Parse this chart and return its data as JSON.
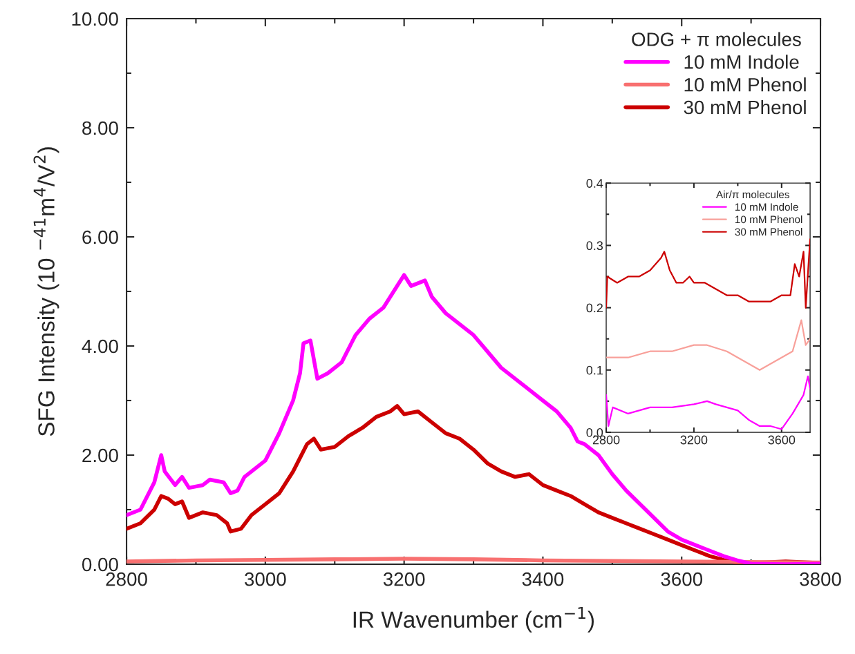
{
  "chart_data": [
    {
      "type": "line",
      "xlabel": "IR Wavenumber (cm$^{−1}$)",
      "ylabel": "SFG Intensity (10 $^{−41}$m$^{4}$/V$^{2}$)",
      "legend_title": "ODG + π molecules",
      "legend": "top right",
      "marker": "none",
      "line_style": "solid",
      "grid": false,
      "xlim": [
        2800,
        3800
      ],
      "xticks": [
        2800,
        {
          "value": 2900,
          "label": null
        },
        3000,
        {
          "value": 3100,
          "label": null
        },
        3200,
        {
          "value": 3300,
          "label": null
        },
        3400,
        {
          "value": 3500,
          "label": null
        },
        3600,
        {
          "value": 3700,
          "label": null
        },
        3800
      ],
      "ylim": [
        0,
        10
      ],
      "yticks": [
        {
          "value": 0,
          "label": "0.00"
        },
        {
          "value": 1,
          "label": null
        },
        {
          "value": 2,
          "label": "2.00"
        },
        {
          "value": 3,
          "label": null
        },
        {
          "value": 4,
          "label": "4.00"
        },
        {
          "value": 5,
          "label": null
        },
        {
          "value": 6,
          "label": "6.00"
        },
        {
          "value": 7,
          "label": null
        },
        {
          "value": 8,
          "label": "8.00"
        },
        {
          "value": 9,
          "label": null
        },
        {
          "value": 10,
          "label": "10.00"
        }
      ],
      "series": [
        {
          "name": "10 mM Indole",
          "color": "#ff00ff",
          "x": [
            2800,
            2820,
            2840,
            2850,
            2855,
            2870,
            2880,
            2890,
            2910,
            2920,
            2940,
            2950,
            2960,
            2970,
            3000,
            3020,
            3040,
            3050,
            3055,
            3065,
            3075,
            3090,
            3110,
            3130,
            3150,
            3170,
            3190,
            3200,
            3210,
            3230,
            3240,
            3260,
            3280,
            3300,
            3320,
            3340,
            3360,
            3380,
            3400,
            3420,
            3440,
            3450,
            3460,
            3480,
            3500,
            3520,
            3540,
            3560,
            3580,
            3600,
            3620,
            3640,
            3660,
            3680,
            3700,
            3750,
            3800
          ],
          "values": [
            0.9,
            1.0,
            1.5,
            2.0,
            1.7,
            1.45,
            1.6,
            1.4,
            1.45,
            1.55,
            1.5,
            1.3,
            1.35,
            1.6,
            1.9,
            2.4,
            3.0,
            3.5,
            4.05,
            4.1,
            3.4,
            3.5,
            3.7,
            4.2,
            4.5,
            4.7,
            5.1,
            5.3,
            5.1,
            5.2,
            4.9,
            4.6,
            4.4,
            4.2,
            3.9,
            3.6,
            3.4,
            3.2,
            3.0,
            2.8,
            2.5,
            2.25,
            2.2,
            2.0,
            1.65,
            1.35,
            1.1,
            0.85,
            0.6,
            0.45,
            0.35,
            0.25,
            0.15,
            0.07,
            0.01,
            0.0,
            0.01
          ]
        },
        {
          "name": "10 mM Phenol",
          "color": "#f87070",
          "x": [
            2800,
            2900,
            3000,
            3100,
            3200,
            3300,
            3400,
            3500,
            3600,
            3700,
            3800
          ],
          "values": [
            0.05,
            0.07,
            0.08,
            0.09,
            0.1,
            0.09,
            0.07,
            0.06,
            0.05,
            0.04,
            0.03
          ]
        },
        {
          "name": "30 mM Phenol",
          "color": "#cc0000",
          "x": [
            2800,
            2820,
            2840,
            2850,
            2860,
            2870,
            2880,
            2890,
            2910,
            2930,
            2945,
            2950,
            2965,
            2980,
            3000,
            3020,
            3040,
            3060,
            3070,
            3080,
            3100,
            3120,
            3140,
            3160,
            3180,
            3190,
            3200,
            3220,
            3240,
            3260,
            3280,
            3300,
            3320,
            3340,
            3360,
            3380,
            3400,
            3420,
            3440,
            3460,
            3480,
            3500,
            3520,
            3540,
            3560,
            3580,
            3600,
            3620,
            3640,
            3660,
            3680,
            3700,
            3750,
            3800
          ],
          "values": [
            0.65,
            0.75,
            1.0,
            1.25,
            1.2,
            1.1,
            1.15,
            0.85,
            0.95,
            0.9,
            0.75,
            0.6,
            0.65,
            0.9,
            1.1,
            1.3,
            1.7,
            2.2,
            2.3,
            2.1,
            2.15,
            2.35,
            2.5,
            2.7,
            2.8,
            2.9,
            2.75,
            2.8,
            2.6,
            2.4,
            2.3,
            2.1,
            1.85,
            1.7,
            1.6,
            1.65,
            1.45,
            1.35,
            1.25,
            1.1,
            0.95,
            0.85,
            0.75,
            0.65,
            0.55,
            0.45,
            0.35,
            0.25,
            0.15,
            0.08,
            0.03,
            0.02,
            0.05,
            0.02
          ]
        }
      ]
    },
    {
      "type": "line",
      "legend_title": "Air/π molecules",
      "legend": "top right",
      "marker": "none",
      "line_style": "solid",
      "grid": false,
      "xlim": [
        2800,
        3730
      ],
      "xticks": [
        2800,
        {
          "value": 3000,
          "label": null
        },
        3200,
        {
          "value": 3400,
          "label": null
        },
        3600
      ],
      "ylim": [
        0,
        0.4
      ],
      "yticks": [
        {
          "value": 0,
          "label": "0.0"
        },
        {
          "value": 0.05,
          "label": null
        },
        0.1,
        {
          "value": 0.15,
          "label": null
        },
        0.2,
        {
          "value": 0.25,
          "label": null
        },
        0.3,
        {
          "value": 0.35,
          "label": null
        },
        0.4
      ],
      "series": [
        {
          "name": "10 mM Indole",
          "color": "#ff00ff",
          "x": [
            2800,
            2810,
            2830,
            2900,
            3000,
            3100,
            3200,
            3260,
            3300,
            3400,
            3450,
            3500,
            3550,
            3600,
            3650,
            3700,
            3720,
            3730
          ],
          "values": [
            0.06,
            0.01,
            0.04,
            0.03,
            0.04,
            0.04,
            0.045,
            0.05,
            0.045,
            0.035,
            0.02,
            0.01,
            0.01,
            0.005,
            0.03,
            0.06,
            0.09,
            0.07
          ]
        },
        {
          "name": "10 mM Phenol",
          "color": "#f8a09a",
          "x": [
            2800,
            2900,
            3000,
            3100,
            3200,
            3260,
            3350,
            3400,
            3450,
            3500,
            3550,
            3600,
            3650,
            3690,
            3710,
            3730
          ],
          "values": [
            0.12,
            0.12,
            0.13,
            0.13,
            0.14,
            0.14,
            0.13,
            0.12,
            0.11,
            0.1,
            0.11,
            0.12,
            0.13,
            0.18,
            0.14,
            0.15
          ]
        },
        {
          "name": "30 mM Phenol",
          "color": "#cc0000",
          "x": [
            2800,
            2805,
            2850,
            2900,
            2950,
            3000,
            3050,
            3065,
            3090,
            3120,
            3150,
            3180,
            3200,
            3250,
            3300,
            3350,
            3400,
            3450,
            3500,
            3550,
            3600,
            3640,
            3660,
            3680,
            3700,
            3710,
            3730
          ],
          "values": [
            0.2,
            0.25,
            0.24,
            0.25,
            0.25,
            0.26,
            0.28,
            0.29,
            0.26,
            0.24,
            0.24,
            0.25,
            0.24,
            0.24,
            0.23,
            0.22,
            0.22,
            0.21,
            0.21,
            0.21,
            0.22,
            0.22,
            0.27,
            0.25,
            0.29,
            0.2,
            0.31
          ]
        }
      ]
    }
  ]
}
